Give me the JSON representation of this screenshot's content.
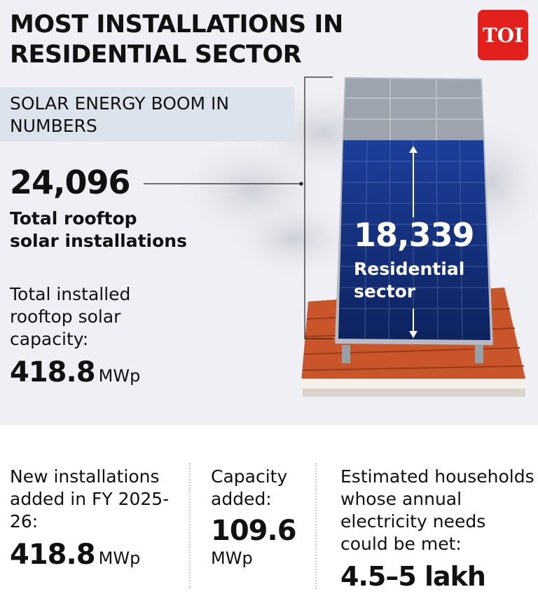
{
  "header": {
    "title_lines": [
      "MOST INSTALLATIONS IN",
      "RESIDENTIAL SECTOR"
    ],
    "logo": "TOI"
  },
  "subtitle": "SOLAR ENERGY BOOM IN NUMBERS",
  "total_installations": {
    "value": "24,096",
    "label": "Total rooftop solar installations"
  },
  "total_capacity": {
    "label": "Total installed rooftop solar capacity:",
    "value": "418.8",
    "unit": "MWp"
  },
  "residential": {
    "value": "18,339",
    "label": "Residential sector"
  },
  "stats": [
    {
      "label": "New installations added in FY 2025-26:",
      "value": "418.8",
      "unit": "MWp"
    },
    {
      "label": "Capacity added:",
      "value": "109.6",
      "unit": "MWp"
    },
    {
      "label": "Estimated households whose annual electricity needs could be met:",
      "value": "4.5–5 lakh"
    }
  ]
}
